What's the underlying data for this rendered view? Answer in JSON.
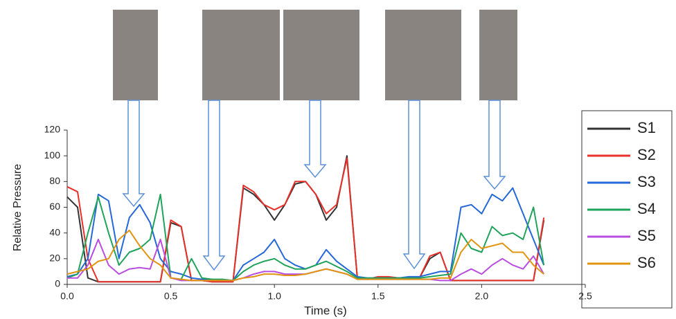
{
  "chart_data": {
    "type": "line",
    "xlabel": "Time (s)",
    "ylabel": "Relative Pressure",
    "xlim": [
      0,
      2.5
    ],
    "ylim": [
      0,
      120
    ],
    "xticks": [
      {
        "value": 0,
        "label": "0.0"
      },
      0.5,
      {
        "value": 1,
        "label": "1.0"
      },
      1.5,
      {
        "value": 2,
        "label": "2.0"
      },
      2.5
    ],
    "yticks": [
      0,
      20,
      40,
      60,
      80,
      100,
      120
    ],
    "x": [
      0,
      0.05,
      0.1,
      0.15,
      0.2,
      0.25,
      0.3,
      0.35,
      0.4,
      0.45,
      0.5,
      0.55,
      0.6,
      0.65,
      0.7,
      0.75,
      0.8,
      0.85,
      0.9,
      0.95,
      1.0,
      1.05,
      1.1,
      1.15,
      1.2,
      1.25,
      1.3,
      1.35,
      1.4,
      1.45,
      1.5,
      1.55,
      1.6,
      1.65,
      1.7,
      1.75,
      1.8,
      1.85,
      1.9,
      1.95,
      2.0,
      2.05,
      2.1,
      2.15,
      2.2,
      2.25,
      2.3
    ],
    "series": [
      {
        "name": "S1",
        "color": "#333333",
        "values": [
          68,
          60,
          5,
          2,
          2,
          2,
          2,
          2,
          2,
          2,
          48,
          45,
          3,
          3,
          2,
          2,
          2,
          75,
          70,
          62,
          50,
          62,
          78,
          80,
          70,
          50,
          60,
          100,
          5,
          4,
          5,
          5,
          5,
          5,
          5,
          20,
          25,
          3,
          3,
          3,
          3,
          3,
          3,
          3,
          3,
          3,
          50
        ]
      },
      {
        "name": "S2",
        "color": "#e8302a",
        "values": [
          76,
          72,
          20,
          2,
          2,
          2,
          2,
          2,
          2,
          2,
          50,
          45,
          3,
          3,
          2,
          2,
          2,
          77,
          72,
          62,
          58,
          62,
          80,
          80,
          70,
          55,
          62,
          98,
          5,
          4,
          6,
          6,
          5,
          5,
          5,
          22,
          25,
          3,
          3,
          3,
          3,
          3,
          3,
          3,
          3,
          3,
          52
        ]
      },
      {
        "name": "S3",
        "color": "#2468d8",
        "values": [
          6,
          8,
          20,
          70,
          65,
          20,
          52,
          62,
          48,
          20,
          10,
          8,
          5,
          4,
          4,
          3,
          3,
          15,
          20,
          25,
          35,
          20,
          15,
          12,
          15,
          27,
          18,
          12,
          6,
          5,
          5,
          5,
          5,
          6,
          6,
          8,
          10,
          10,
          60,
          62,
          55,
          70,
          65,
          75,
          55,
          35,
          15
        ]
      },
      {
        "name": "S4",
        "color": "#1fa35a",
        "values": [
          5,
          8,
          40,
          68,
          40,
          15,
          25,
          28,
          35,
          70,
          5,
          4,
          20,
          5,
          4,
          4,
          3,
          10,
          15,
          18,
          20,
          15,
          12,
          12,
          15,
          18,
          14,
          10,
          5,
          5,
          5,
          5,
          5,
          5,
          5,
          6,
          7,
          8,
          40,
          28,
          25,
          45,
          38,
          40,
          35,
          60,
          15
        ]
      },
      {
        "name": "S5",
        "color": "#b84de0",
        "values": [
          5,
          5,
          15,
          35,
          15,
          8,
          12,
          13,
          12,
          35,
          5,
          3,
          3,
          3,
          3,
          3,
          3,
          5,
          8,
          10,
          10,
          8,
          8,
          8,
          10,
          12,
          10,
          8,
          4,
          4,
          4,
          4,
          4,
          4,
          4,
          4,
          3,
          3,
          8,
          12,
          8,
          15,
          20,
          15,
          12,
          22,
          8
        ]
      },
      {
        "name": "S6",
        "color": "#e0940f",
        "values": [
          8,
          10,
          12,
          18,
          20,
          35,
          42,
          30,
          20,
          15,
          5,
          4,
          3,
          3,
          3,
          3,
          3,
          5,
          6,
          8,
          8,
          7,
          7,
          8,
          10,
          12,
          10,
          8,
          4,
          4,
          4,
          4,
          4,
          4,
          4,
          4,
          5,
          5,
          25,
          35,
          28,
          30,
          32,
          25,
          25,
          15,
          8
        ]
      }
    ]
  }
}
